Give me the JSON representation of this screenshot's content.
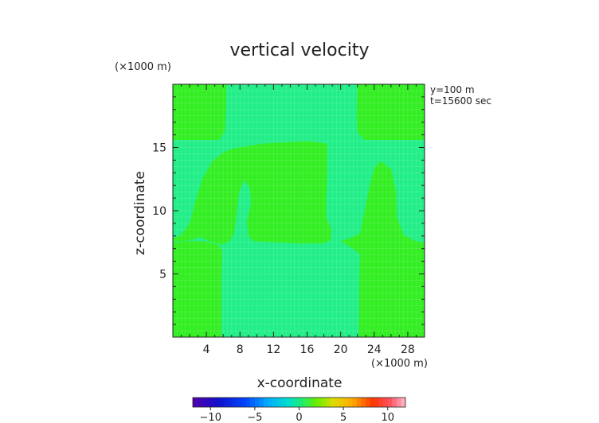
{
  "chart_data": {
    "type": "heatmap",
    "title": "vertical velocity",
    "xlabel": "x-coordinate",
    "ylabel": "z-coordinate",
    "x_unit": "(×1000 m)",
    "y_unit": "(×1000 m)",
    "xlim": [
      0,
      30
    ],
    "ylim": [
      0,
      20
    ],
    "x_ticks": [
      4,
      8,
      12,
      16,
      20,
      24,
      28
    ],
    "y_ticks": [
      5,
      10,
      15
    ],
    "annotations": [
      "y=100 m",
      "t=15600 sec"
    ],
    "colorbar": {
      "ticks": [
        -10,
        -5,
        0,
        5,
        10
      ],
      "range": [
        -12,
        12
      ]
    },
    "background_value": 0.2,
    "regions": [
      {
        "name": "left-positive",
        "value": 1.5,
        "color": "#33ee22",
        "outline": [
          [
            0,
            0
          ],
          [
            5.8,
            0
          ],
          [
            5.8,
            7
          ],
          [
            5.8,
            7.3
          ],
          [
            5.5,
            7.6
          ],
          [
            4.2,
            7.9
          ],
          [
            4.5,
            8.3
          ],
          [
            4.8,
            10
          ],
          [
            5.2,
            12.5
          ],
          [
            6.2,
            14
          ],
          [
            7.5,
            15.3
          ],
          [
            11,
            15.4
          ],
          [
            16,
            15.5
          ],
          [
            18,
            15.4
          ],
          [
            18.3,
            14
          ],
          [
            18.3,
            12
          ],
          [
            18.2,
            10
          ],
          [
            18.6,
            8.5
          ],
          [
            18.4,
            7.5
          ],
          [
            17,
            7.4
          ],
          [
            12,
            7.5
          ],
          [
            9.4,
            7.6
          ],
          [
            8.8,
            8.1
          ],
          [
            8.6,
            9.1
          ],
          [
            8.8,
            10
          ],
          [
            9.3,
            11.3
          ],
          [
            8.9,
            12.4
          ],
          [
            8.2,
            11.8
          ],
          [
            7.5,
            10
          ],
          [
            7.2,
            8.3
          ],
          [
            6.7,
            7.6
          ],
          [
            6,
            7.3
          ],
          [
            6,
            7.3
          ],
          [
            5.6,
            7.4
          ],
          [
            4.2,
            7.6
          ],
          [
            3.6,
            7.9
          ],
          [
            4,
            8.3
          ],
          [
            4.7,
            10.5
          ],
          [
            5.6,
            13
          ],
          [
            7.2,
            14.9
          ],
          [
            8.2,
            15.4
          ],
          [
            15,
            15.6
          ],
          [
            18,
            15.5
          ],
          [
            18.1,
            12
          ],
          [
            18.1,
            9
          ],
          [
            18.6,
            8
          ],
          [
            18.2,
            7.3
          ],
          [
            12,
            7.4
          ],
          [
            9.2,
            7.5
          ],
          [
            8.5,
            8.2
          ],
          [
            8.5,
            9.5
          ],
          [
            9.1,
            10.7
          ],
          [
            8.8,
            12.3
          ],
          [
            7.8,
            11
          ],
          [
            7.6,
            9
          ],
          [
            7.3,
            7.8
          ],
          [
            6.2,
            7.4
          ],
          [
            4.8,
            7.2
          ],
          [
            3.9,
            7.6
          ],
          [
            4.5,
            8.5
          ],
          [
            6,
            14
          ],
          [
            7.4,
            15.3
          ],
          [
            6.5,
            15.6
          ],
          [
            6,
            15.6
          ],
          [
            0,
            15.6
          ],
          [
            0,
            20
          ],
          [
            6.3,
            20
          ],
          [
            6.3,
            16.5
          ],
          [
            5.9,
            15.9
          ],
          [
            0,
            15.6
          ],
          [
            0,
            7.5
          ],
          [
            1.3,
            7.6
          ],
          [
            2.5,
            8.6
          ],
          [
            4,
            11.5
          ],
          [
            5.5,
            13.8
          ],
          [
            7,
            15.2
          ],
          [
            18,
            15.5
          ],
          [
            18.2,
            7.6
          ],
          [
            9.6,
            7.6
          ],
          [
            9.6,
            7.6
          ],
          [
            7,
            7.5
          ],
          [
            6,
            7.2
          ],
          [
            5.8,
            6.9
          ],
          [
            5.8,
            0
          ]
        ]
      },
      {
        "name": "top-left-corner",
        "value": 1.5,
        "color": "#33ee22",
        "outline": [
          [
            0,
            15.6
          ],
          [
            5.5,
            15.6
          ],
          [
            6.2,
            16.3
          ],
          [
            6.3,
            17.5
          ],
          [
            6.4,
            20
          ],
          [
            0,
            20
          ]
        ]
      },
      {
        "name": "top-right-corner",
        "value": 1.5,
        "color": "#33ee22",
        "outline": [
          [
            22,
            20
          ],
          [
            21.9,
            17.5
          ],
          [
            22,
            16.2
          ],
          [
            22.8,
            15.6
          ],
          [
            30,
            15.6
          ],
          [
            30,
            20
          ]
        ]
      },
      {
        "name": "right-positive",
        "value": 1.5,
        "color": "#33ee22",
        "outline": [
          [
            22.2,
            0
          ],
          [
            30,
            0
          ],
          [
            30,
            7.5
          ],
          [
            28.9,
            7.6
          ],
          [
            27.5,
            8.1
          ],
          [
            26.7,
            9.5
          ],
          [
            26.6,
            11.5
          ],
          [
            26,
            13.3
          ],
          [
            24.8,
            13.9
          ],
          [
            24,
            13.4
          ],
          [
            23.4,
            11.8
          ],
          [
            22.8,
            9.8
          ],
          [
            22.3,
            8.2
          ],
          [
            21,
            7.8
          ],
          [
            20,
            7.6
          ],
          [
            21,
            7.2
          ],
          [
            22.3,
            6.6
          ],
          [
            22.3,
            5
          ],
          [
            22.2,
            2
          ],
          [
            22.2,
            0
          ]
        ]
      },
      {
        "name": "center-positive",
        "value": 1.5,
        "color": "#33ee22",
        "outline": [
          [
            7.1,
            14.9
          ],
          [
            10.5,
            15.3
          ],
          [
            16.2,
            15.5
          ],
          [
            18.4,
            15.3
          ],
          [
            18.4,
            13
          ],
          [
            18.3,
            11
          ],
          [
            18.3,
            9.4
          ],
          [
            18.9,
            8.5
          ],
          [
            18.8,
            7.7
          ],
          [
            18,
            7.4
          ],
          [
            15,
            7.4
          ],
          [
            12,
            7.5
          ],
          [
            9.6,
            7.6
          ],
          [
            9,
            8
          ],
          [
            8.8,
            9.1
          ],
          [
            9.3,
            10.5
          ],
          [
            9.2,
            11.8
          ],
          [
            8.5,
            12.4
          ],
          [
            7.9,
            11.5
          ],
          [
            7.6,
            9.7
          ],
          [
            7.3,
            8.2
          ],
          [
            6.8,
            7.6
          ],
          [
            5.9,
            7.3
          ],
          [
            4.3,
            7.6
          ],
          [
            3.4,
            7.9
          ],
          [
            1.5,
            7.6
          ],
          [
            0.5,
            7.6
          ],
          [
            0,
            7.6
          ],
          [
            0,
            7.8
          ],
          [
            1,
            8.1
          ],
          [
            2,
            9
          ],
          [
            2.8,
            11
          ],
          [
            3.5,
            12.5
          ],
          [
            4.7,
            13.9
          ],
          [
            6,
            14.6
          ]
        ]
      },
      {
        "name": "left-lower-strip",
        "value": 1.5,
        "color": "#33ee22",
        "outline": [
          [
            0,
            0
          ],
          [
            5.8,
            0
          ],
          [
            5.8,
            5
          ],
          [
            5.9,
            6.8
          ],
          [
            5.4,
            7.3
          ],
          [
            4.3,
            7.5
          ],
          [
            3.6,
            7.6
          ],
          [
            2,
            7.6
          ],
          [
            0,
            7.5
          ]
        ]
      },
      {
        "name": "right-lower-strip",
        "value": 1.5,
        "color": "#33ee22",
        "outline": [
          [
            22.2,
            0
          ],
          [
            30,
            0
          ],
          [
            30,
            7.5
          ],
          [
            25,
            7.5
          ],
          [
            23,
            7.1
          ],
          [
            22.3,
            6.5
          ],
          [
            22.2,
            3
          ]
        ]
      }
    ]
  },
  "colors": {
    "zero_band": "#22ee88",
    "positive_band": "#33ee22",
    "grid": "#ffffff",
    "text": "#222222"
  }
}
